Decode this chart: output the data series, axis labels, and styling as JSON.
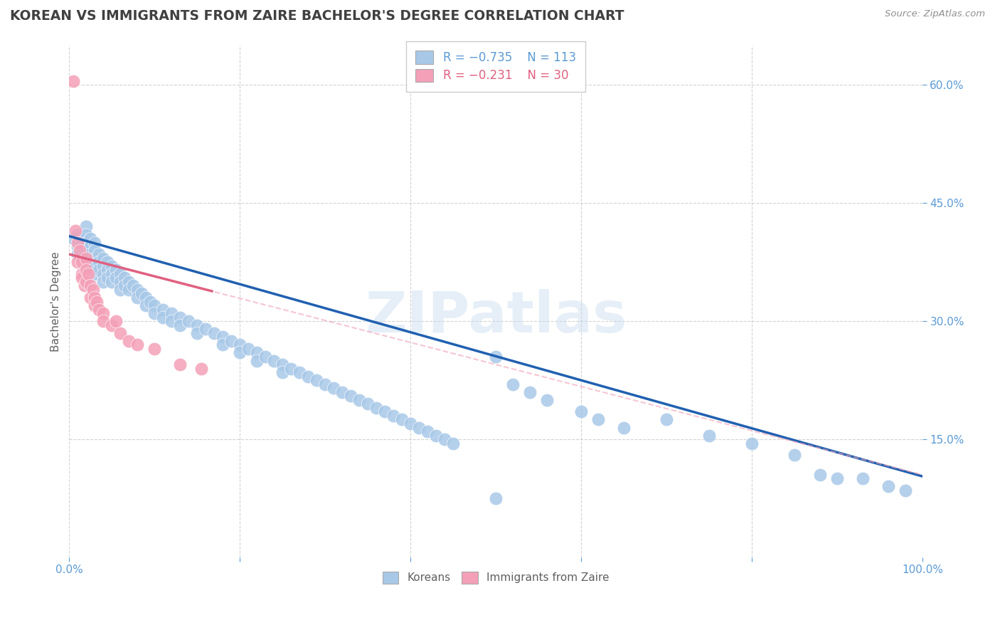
{
  "title": "KOREAN VS IMMIGRANTS FROM ZAIRE BACHELOR'S DEGREE CORRELATION CHART",
  "source": "Source: ZipAtlas.com",
  "ylabel": "Bachelor's Degree",
  "xlim": [
    0.0,
    1.0
  ],
  "ylim": [
    0.0,
    0.65
  ],
  "blue_color": "#A8C8E8",
  "pink_color": "#F4A0B8",
  "blue_line_color": "#2060B0",
  "pink_line_color": "#E06080",
  "pink_dash_color": "#F0A0B8",
  "watermark": "ZIPatlas",
  "title_color": "#404040",
  "axis_color": "#5B9BD5",
  "grid_color": "#C8C8C8",
  "blue_regression": [
    -0.305,
    0.408
  ],
  "pink_regression": [
    -0.28,
    0.385
  ],
  "koreans_x": [
    0.005,
    0.01,
    0.01,
    0.01,
    0.015,
    0.015,
    0.015,
    0.02,
    0.02,
    0.02,
    0.02,
    0.02,
    0.025,
    0.025,
    0.025,
    0.025,
    0.025,
    0.03,
    0.03,
    0.03,
    0.03,
    0.03,
    0.035,
    0.035,
    0.035,
    0.04,
    0.04,
    0.04,
    0.04,
    0.045,
    0.045,
    0.045,
    0.05,
    0.05,
    0.05,
    0.055,
    0.055,
    0.06,
    0.06,
    0.06,
    0.065,
    0.065,
    0.07,
    0.07,
    0.075,
    0.08,
    0.08,
    0.085,
    0.09,
    0.09,
    0.095,
    0.1,
    0.1,
    0.11,
    0.11,
    0.12,
    0.12,
    0.13,
    0.13,
    0.14,
    0.15,
    0.15,
    0.16,
    0.17,
    0.18,
    0.18,
    0.19,
    0.2,
    0.2,
    0.21,
    0.22,
    0.22,
    0.23,
    0.24,
    0.25,
    0.25,
    0.26,
    0.27,
    0.28,
    0.29,
    0.3,
    0.31,
    0.32,
    0.33,
    0.34,
    0.35,
    0.36,
    0.37,
    0.38,
    0.39,
    0.4,
    0.41,
    0.42,
    0.43,
    0.44,
    0.45,
    0.5,
    0.52,
    0.54,
    0.56,
    0.6,
    0.62,
    0.65,
    0.7,
    0.75,
    0.8,
    0.85,
    0.88,
    0.9,
    0.93,
    0.96,
    0.98,
    0.5
  ],
  "koreans_y": [
    0.405,
    0.395,
    0.41,
    0.385,
    0.4,
    0.39,
    0.38,
    0.42,
    0.41,
    0.4,
    0.395,
    0.375,
    0.405,
    0.395,
    0.385,
    0.375,
    0.365,
    0.4,
    0.39,
    0.38,
    0.37,
    0.36,
    0.385,
    0.375,
    0.365,
    0.38,
    0.37,
    0.36,
    0.35,
    0.375,
    0.365,
    0.355,
    0.37,
    0.36,
    0.35,
    0.365,
    0.355,
    0.36,
    0.35,
    0.34,
    0.355,
    0.345,
    0.35,
    0.34,
    0.345,
    0.34,
    0.33,
    0.335,
    0.33,
    0.32,
    0.325,
    0.32,
    0.31,
    0.315,
    0.305,
    0.31,
    0.3,
    0.305,
    0.295,
    0.3,
    0.295,
    0.285,
    0.29,
    0.285,
    0.28,
    0.27,
    0.275,
    0.27,
    0.26,
    0.265,
    0.26,
    0.25,
    0.255,
    0.25,
    0.245,
    0.235,
    0.24,
    0.235,
    0.23,
    0.225,
    0.22,
    0.215,
    0.21,
    0.205,
    0.2,
    0.195,
    0.19,
    0.185,
    0.18,
    0.175,
    0.17,
    0.165,
    0.16,
    0.155,
    0.15,
    0.145,
    0.255,
    0.22,
    0.21,
    0.2,
    0.185,
    0.175,
    0.165,
    0.175,
    0.155,
    0.145,
    0.13,
    0.105,
    0.1,
    0.1,
    0.09,
    0.085,
    0.075
  ],
  "zaire_x": [
    0.005,
    0.007,
    0.01,
    0.01,
    0.012,
    0.015,
    0.015,
    0.015,
    0.018,
    0.02,
    0.02,
    0.02,
    0.022,
    0.025,
    0.025,
    0.028,
    0.03,
    0.03,
    0.032,
    0.035,
    0.04,
    0.04,
    0.05,
    0.055,
    0.06,
    0.07,
    0.08,
    0.1,
    0.13,
    0.155
  ],
  "zaire_y": [
    0.605,
    0.415,
    0.4,
    0.375,
    0.39,
    0.36,
    0.375,
    0.355,
    0.345,
    0.38,
    0.365,
    0.35,
    0.36,
    0.345,
    0.33,
    0.34,
    0.33,
    0.32,
    0.325,
    0.315,
    0.31,
    0.3,
    0.295,
    0.3,
    0.285,
    0.275,
    0.27,
    0.265,
    0.245,
    0.24
  ]
}
